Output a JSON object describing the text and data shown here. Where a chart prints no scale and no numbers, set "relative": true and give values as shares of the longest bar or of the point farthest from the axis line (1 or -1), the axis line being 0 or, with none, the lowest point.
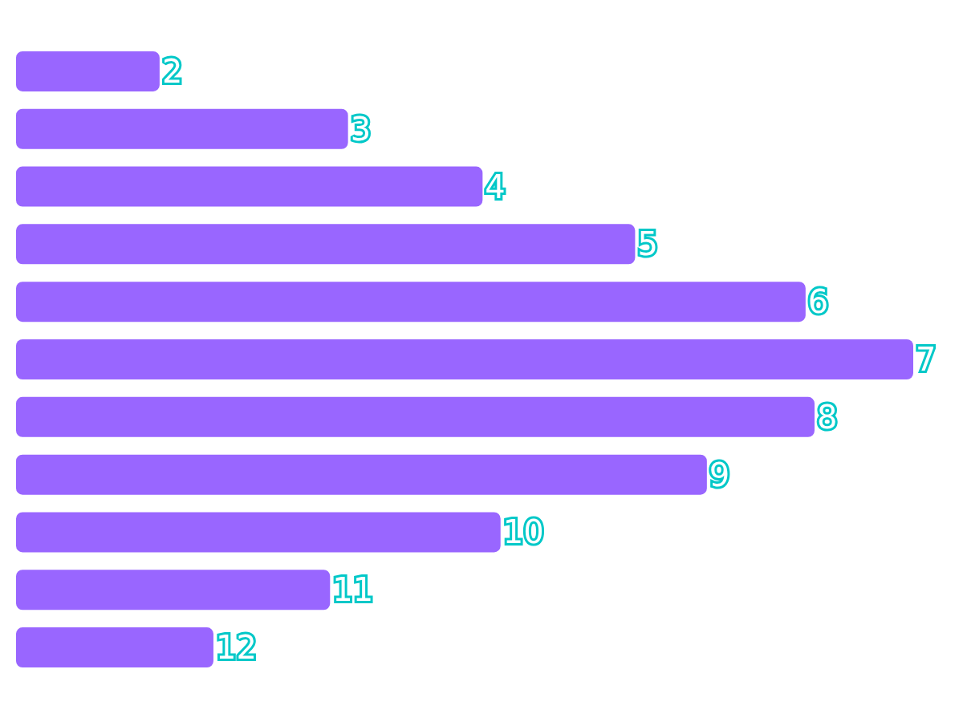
{
  "chart_data": {
    "type": "bar",
    "orientation": "horizontal",
    "relative": true,
    "categories": [
      "2",
      "3",
      "4",
      "5",
      "6",
      "7",
      "8",
      "9",
      "10",
      "11",
      "12"
    ],
    "values": [
      0.16,
      0.37,
      0.52,
      0.69,
      0.88,
      1,
      0.89,
      0.77,
      0.54,
      0.35,
      0.22
    ],
    "color": "#9966ff"
  }
}
